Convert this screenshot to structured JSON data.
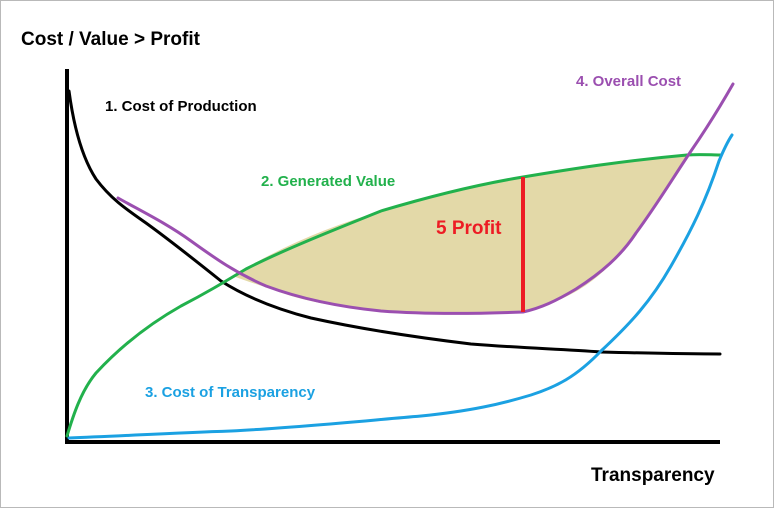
{
  "labels": {
    "y_axis_title": "Cost / Value > Profit",
    "x_axis_title": "Transparency",
    "curve_production": "1. Cost of Production",
    "curve_value": "2. Generated Value",
    "curve_transparency": "3. Cost of Transparency",
    "curve_overall": "4. Overall Cost",
    "profit": "5 Profit"
  },
  "colors": {
    "axis": "#000000",
    "production": "#000000",
    "value": "#22b14c",
    "transparency": "#1ba1e2",
    "overall": "#9b4fb0",
    "profit_line": "#ed1c24",
    "profit_fill": "#e3d9a8"
  }
}
